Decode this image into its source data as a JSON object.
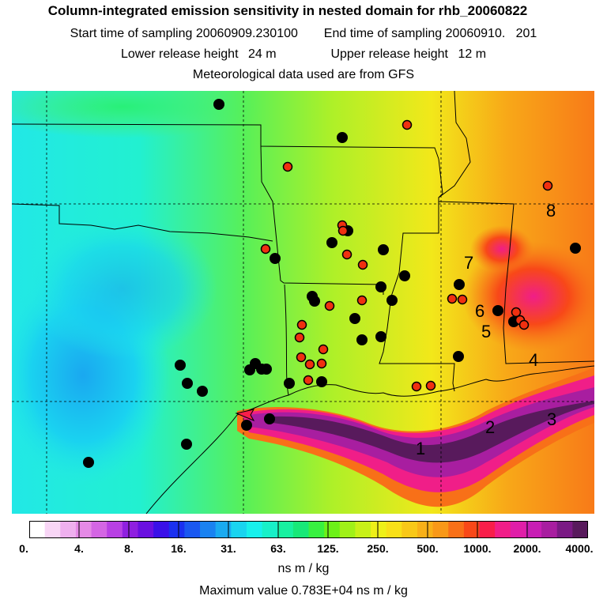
{
  "title": "Column-integrated emission sensitivity in nested domain for rhb_20060822",
  "start_label": "Start time of sampling",
  "start_value": "20060909.230100",
  "end_label": "End time of sampling",
  "end_value": "20060910.   201",
  "lower_label": "Lower release height",
  "lower_value": "24 m",
  "upper_label": "Upper release height",
  "upper_value": "12 m",
  "met_note": "Meteorological data used are from GFS",
  "colorbar": {
    "ticks": [
      "0.",
      "4.",
      "8.",
      "16.",
      "31.",
      "63.",
      "125.",
      "250.",
      "500.",
      "1000.",
      "2000.",
      "4000."
    ],
    "colors": [
      "#ffffff",
      "#f8d6f6",
      "#eeb0ee",
      "#e58ae6",
      "#d466e4",
      "#b840e4",
      "#8f20e0",
      "#6a10e0",
      "#3a10e8",
      "#1a30f0",
      "#1a58f0",
      "#1a82f0",
      "#1aaaf0",
      "#1ad4f0",
      "#18f0ec",
      "#18f0c8",
      "#18f0a0",
      "#18e878",
      "#38f040",
      "#6cf018",
      "#a0f018",
      "#c8f018",
      "#eef018",
      "#f8e018",
      "#f8c818",
      "#f8b018",
      "#f89818",
      "#f87018",
      "#f84818",
      "#f81e4a",
      "#f01e88",
      "#e01ea8",
      "#c81eb4",
      "#a81ea0",
      "#7a1a84",
      "#581a5c"
    ],
    "units": "ns m / kg"
  },
  "max_value_text": "Maximum value  0.783E+04 ns m / kg",
  "map_labels": [
    "1",
    "2",
    "3",
    "4",
    "5",
    "6",
    "7",
    "8"
  ],
  "black_dot_color": "#000000",
  "red_dot_color": "#f03010"
}
